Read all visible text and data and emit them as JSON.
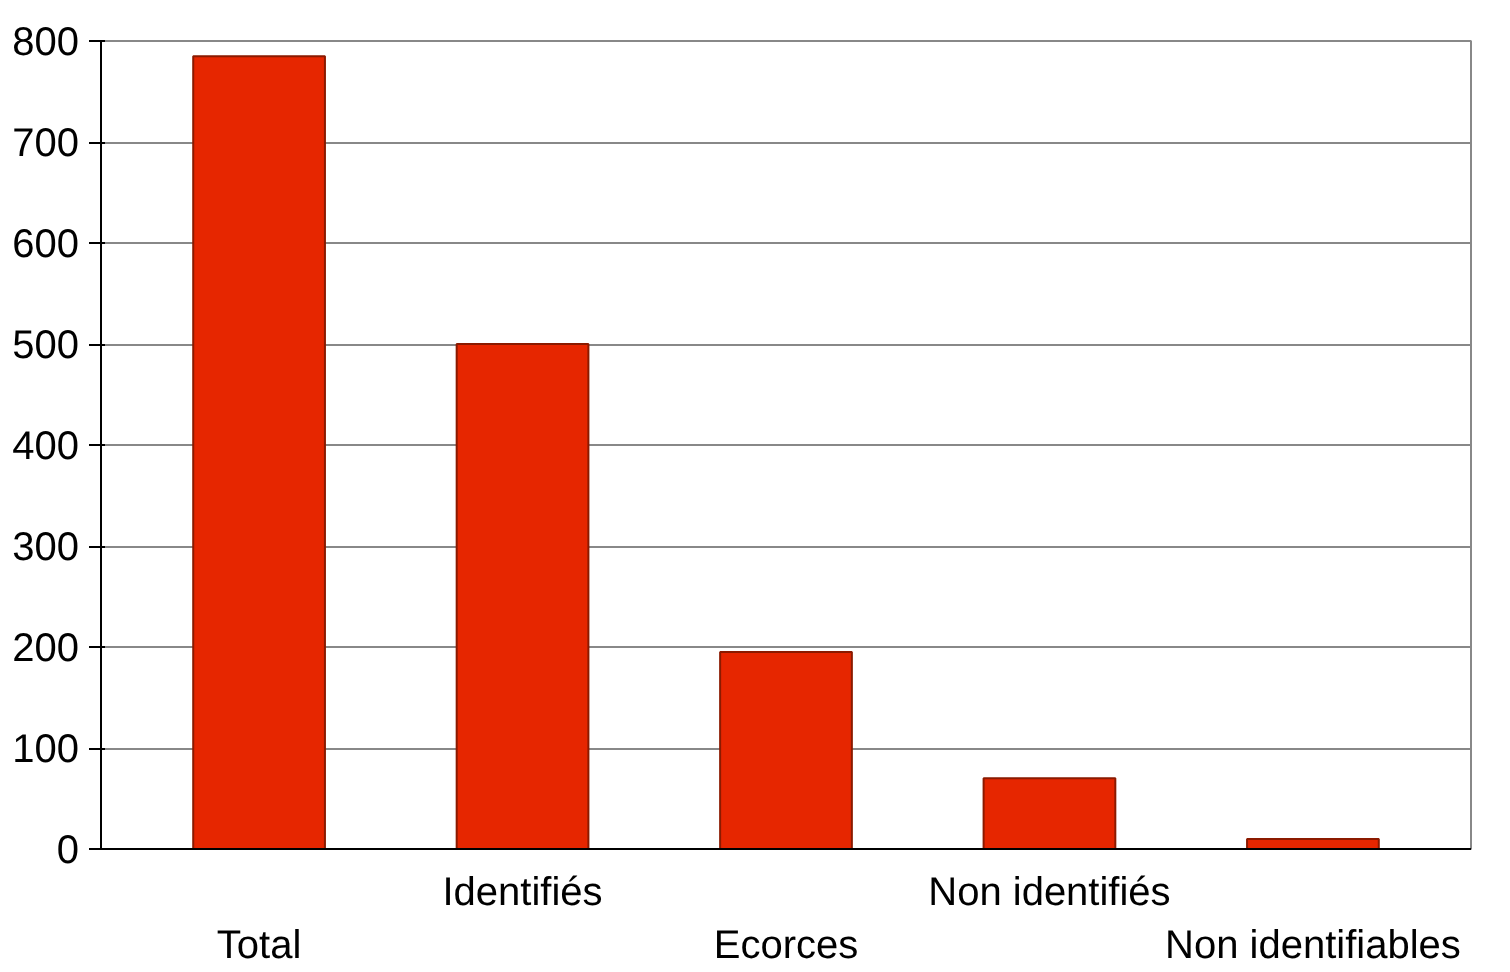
{
  "chart_data": {
    "type": "bar",
    "categories": [
      "Total",
      "Identifiés",
      "Ecorces",
      "Non identifiés",
      "Non identifiables"
    ],
    "values": [
      785,
      500,
      195,
      70,
      10
    ],
    "color": "#e62600",
    "ylim": [
      0,
      800
    ],
    "yticks": [
      0,
      100,
      200,
      300,
      400,
      500,
      600,
      700,
      800
    ],
    "grid": "y"
  }
}
